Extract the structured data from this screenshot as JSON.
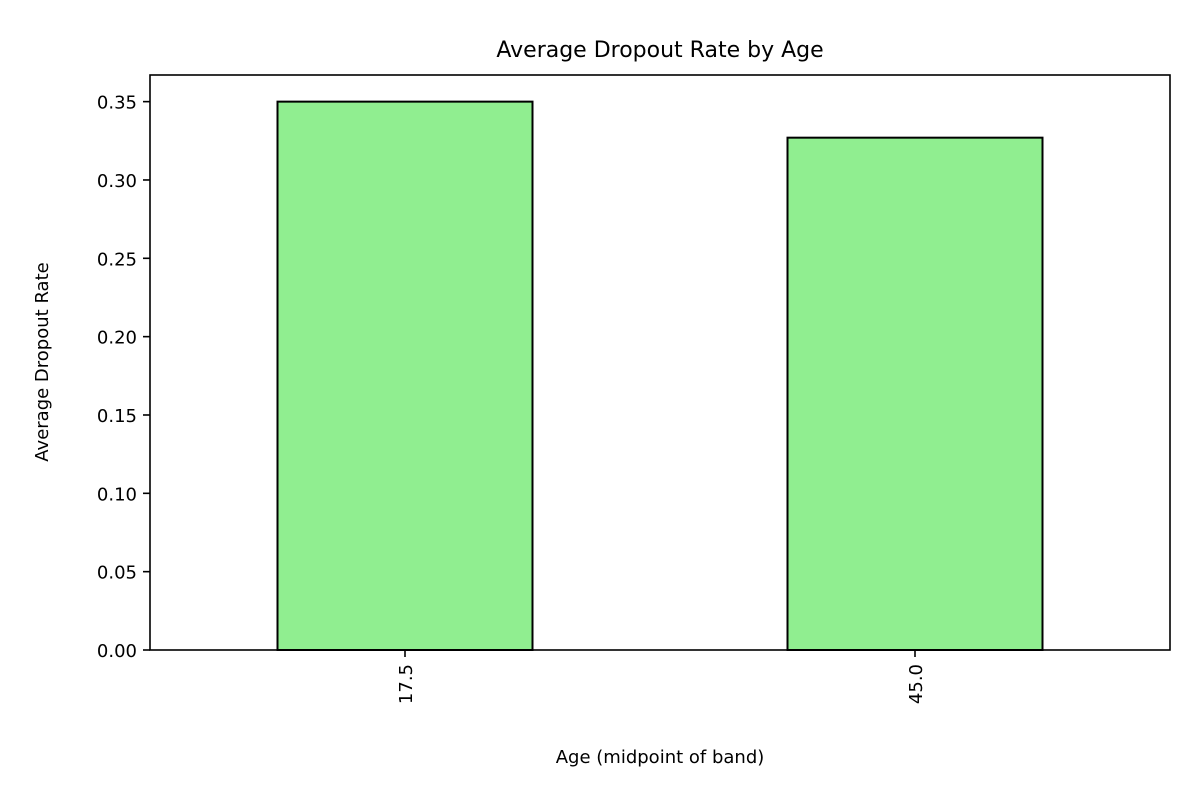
{
  "chart_data": {
    "type": "bar",
    "title": "Average Dropout Rate by Age",
    "xlabel": "Age (midpoint of band)",
    "ylabel": "Average Dropout Rate",
    "categories": [
      "17.5",
      "45.0"
    ],
    "values": [
      0.35,
      0.327
    ],
    "ylim": [
      0,
      0.367
    ],
    "yticks": [
      "0.00",
      "0.05",
      "0.10",
      "0.15",
      "0.20",
      "0.25",
      "0.30",
      "0.35"
    ],
    "ytick_values": [
      0,
      0.05,
      0.1,
      0.15,
      0.2,
      0.25,
      0.3,
      0.35
    ],
    "grid": false,
    "legend": "none",
    "bar_color": "#90ee90",
    "bar_edge_color": "#000000",
    "xtick_rotation": "vertical"
  }
}
